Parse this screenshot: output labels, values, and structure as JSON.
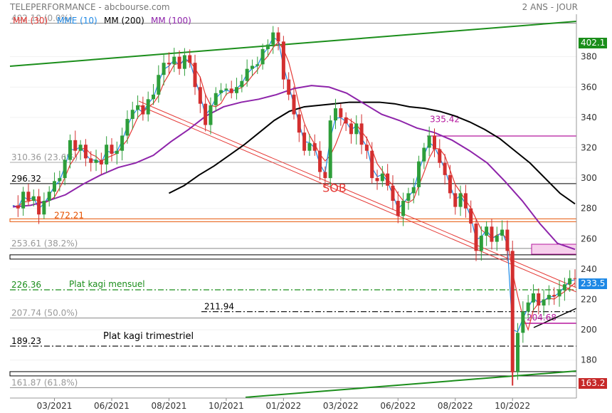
{
  "header": {
    "title": "TELEPERFORMANCE - abcbourse.com",
    "period": "2 ANS - JOUR"
  },
  "legend": [
    {
      "label": "MM (30)",
      "color": "#e53935"
    },
    {
      "label": "MME (10)",
      "color": "#1e88e5"
    },
    {
      "label": "MM (200)",
      "color": "#000000"
    },
    {
      "label": "MM (100)",
      "color": "#8e24aa"
    }
  ],
  "price_tags": {
    "top": "402.1",
    "last": "233.5",
    "bottom": "163.2"
  },
  "chart_data": {
    "type": "candlestick",
    "title": "TELEPERFORMANCE",
    "ylim": [
      155,
      408
    ],
    "y_ticks": [
      180,
      200,
      220,
      240,
      260,
      280,
      300,
      320,
      340,
      360,
      380
    ],
    "x_ticks": [
      "03/2021",
      "06/2021",
      "08/2021",
      "10/2021",
      "01/2022",
      "03/2022",
      "06/2022",
      "08/2022",
      "10/2022"
    ],
    "x_tick_index": [
      8,
      19,
      30,
      41,
      52,
      63,
      74,
      85,
      96
    ],
    "n_periods": 109,
    "close_series": [
      282,
      280,
      291,
      285,
      288,
      276,
      285,
      291,
      298,
      300,
      312,
      325,
      318,
      322,
      313,
      310,
      312,
      309,
      322,
      316,
      318,
      328,
      339,
      345,
      348,
      342,
      352,
      355,
      368,
      376,
      375,
      380,
      372,
      381,
      376,
      360,
      349,
      335,
      348,
      356,
      358,
      359,
      356,
      360,
      364,
      372,
      374,
      375,
      385,
      388,
      396,
      390,
      365,
      355,
      342,
      330,
      318,
      323,
      318,
      304,
      300,
      338,
      346,
      340,
      336,
      329,
      336,
      322,
      318,
      300,
      298,
      303,
      295,
      285,
      275,
      285,
      290,
      294,
      311,
      320,
      328,
      319,
      310,
      302,
      290,
      281,
      290,
      280,
      270,
      252,
      262,
      268,
      258,
      262,
      266,
      252,
      172,
      198,
      212,
      218,
      224,
      216,
      220,
      223,
      222,
      226,
      230,
      234,
      233.5
    ],
    "mas": [
      {
        "label": "MM (200)",
        "color": "#000000",
        "start": 30,
        "values": [
          290,
          295,
          302,
          308,
          315,
          322,
          330,
          338,
          344,
          347,
          348,
          349,
          350,
          350,
          350,
          349,
          347,
          346,
          344,
          341,
          337,
          332,
          326,
          318,
          310,
          300,
          290,
          283
        ]
      },
      {
        "label": "MM (100)",
        "color": "#8e24aa",
        "start": 0,
        "values": [
          281,
          282,
          285,
          289,
          296,
          302,
          307,
          310,
          315,
          324,
          332,
          341,
          347,
          350,
          352,
          355,
          359,
          361,
          360,
          356,
          349,
          342,
          338,
          333,
          330,
          325,
          318,
          310,
          298,
          285,
          270,
          257,
          253
        ]
      }
    ],
    "support_lines": [
      {
        "label": "402.10  (0.0%)",
        "y": 402.1,
        "color": "#888888",
        "style": "solid"
      },
      {
        "label": "310.36  (23.6%)",
        "y": 310.36,
        "color": "#aaaaaa",
        "style": "solid"
      },
      {
        "label": "296.32",
        "y": 296.32,
        "color": "#000000",
        "style": "solid"
      },
      {
        "label": "272.21",
        "y": 272.21,
        "color": "#e65100",
        "style": "band"
      },
      {
        "label": "253.61  (38.2%)",
        "y": 253.61,
        "color": "#888888",
        "style": "solid"
      },
      {
        "label": "226.36",
        "y": 226.36,
        "color": "#1b8e1b",
        "style": "dashdot"
      },
      {
        "label": "211.94",
        "y": 211.94,
        "color": "#000000",
        "style": "dashdot"
      },
      {
        "label": "207.74  (50.0%)",
        "y": 207.74,
        "color": "#888888",
        "style": "solid"
      },
      {
        "label": "189.23",
        "y": 189.23,
        "color": "#000000",
        "style": "dashdot"
      },
      {
        "label": "161.87  (61.8%)",
        "y": 161.87,
        "color": "#888888",
        "style": "solid"
      }
    ],
    "annotations": [
      {
        "text": "SOB",
        "color": "#e53935"
      },
      {
        "text": "Plat kagi mensuel",
        "color": "#1b8e1b"
      },
      {
        "text": "Plat kagi trimestriel",
        "color": "#000000"
      },
      {
        "text": "335.42",
        "color": "#b5179e"
      },
      {
        "text": "204.68",
        "color": "#b5179e"
      }
    ]
  }
}
